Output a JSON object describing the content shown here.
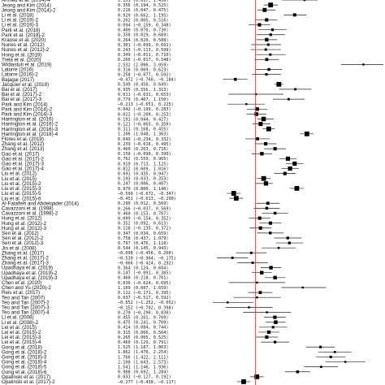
{
  "chart_data": {
    "type": "forest",
    "title": "",
    "xlabel": "",
    "ylabel": "",
    "null_line_value": 0,
    "xlim": [
      -1.0,
      3.0
    ],
    "null_line_color": "#e03030",
    "marker_color": "#000000",
    "studies": [
      {
        "label": "Ahmed et al. (2014)-4",
        "est": 1.151,
        "lo": 0.617,
        "hi": 1.456
      },
      {
        "label": "Jeong and Kim (2014)",
        "est": 0.356,
        "lo": 0.194,
        "hi": 0.525
      },
      {
        "label": "Jeong and Kim (2014)-2",
        "est": 0.216,
        "lo": 0.047,
        "hi": 0.475
      },
      {
        "label": "Li et al. (2018)",
        "est": 0.92,
        "lo": 0.662,
        "hi": 1.195
      },
      {
        "label": "Li et al. (2019)-2",
        "est": 0.262,
        "lo": 0.005,
        "hi": 0.516
      },
      {
        "label": "Li et al. (2019)-3",
        "est": 0.094,
        "lo": -0.159,
        "hi": 0.348
      },
      {
        "label": "Park et al. (2018)",
        "est": 0.4,
        "lo": 0.07,
        "hi": 0.73
      },
      {
        "label": "Park et al. (2018)-2",
        "est": 0.358,
        "lo": 0.029,
        "hi": 0.689
      },
      {
        "label": "Krause et al. (2020)",
        "est": 0.264,
        "lo": 0.02,
        "hi": 0.508
      },
      {
        "label": "Nunes et al. (2012)",
        "est": 0.301,
        "lo": -0.099,
        "hi": 0.601
      },
      {
        "label": "Nunes et al. (2012)-2",
        "est": 0.243,
        "lo": -0.113,
        "hi": 0.599
      },
      {
        "label": "Hong et al. (2019)",
        "est": 0.349,
        "lo": -0.011,
        "hi": 0.71
      },
      {
        "label": "Trela et al. (2020)",
        "est": 0.266,
        "lo": -0.017,
        "hi": 0.548
      },
      {
        "label": "Widiastuti et al. (2019)",
        "est": 2.532,
        "lo": 2.006,
        "hi": 3.059
      },
      {
        "label": "Latorre (2016)",
        "est": 0.316,
        "lo": 0.009,
        "hi": 0.623
      },
      {
        "label": "Latorre (2016)-2",
        "est": 0.258,
        "lo": -0.077,
        "hi": 0.592
      },
      {
        "label": "Bajagai (2017)",
        "est": -0.472,
        "lo": -0.76,
        "hi": -0.184
      },
      {
        "label": "Jacquier et al. (2019)",
        "est": 0.549,
        "lo": 0.45,
        "hi": 0.649
      },
      {
        "label": "Bai et al. (2017)",
        "est": 0.935,
        "lo": 0.556,
        "hi": 1.313
      },
      {
        "label": "Bai et al. (2017)-2",
        "est": 0.011,
        "lo": -0.631,
        "hi": 0.653
      },
      {
        "label": "Bai et al. (2017)-3",
        "est": 0.779,
        "lo": 0.407,
        "hi": 1.15
      },
      {
        "label": "Park and Kim (2014)",
        "est": -0.213,
        "lo": -0.651,
        "hi": 0.225
      },
      {
        "label": "Park and Kim (2014)-2",
        "est": 0.042,
        "lo": -0.199,
        "hi": 0.283
      },
      {
        "label": "Park and Kim (2014)-3",
        "est": 0.022,
        "lo": -0.209,
        "hi": 0.253
      },
      {
        "label": "Harrington et al. (2016)",
        "est": 0.191,
        "lo": 0.044,
        "hi": 0.427
      },
      {
        "label": "Harrington et al. (2016)-2",
        "est": 0.121,
        "lo": -0.065,
        "hi": 0.35
      },
      {
        "label": "Harrington et al. (2016)-3",
        "est": 0.311,
        "lo": 0.168,
        "hi": 0.455
      },
      {
        "label": "Harrington et al. (2018)-4",
        "est": 1.206,
        "lo": 1.048,
        "hi": 1.363
      },
      {
        "label": "Flores et al. (2019)",
        "est": 0.049,
        "lo": -0.234,
        "hi": 0.332
      },
      {
        "label": "Zhang et al. (2012)",
        "est": 0.239,
        "lo": -0.016,
        "hi": 0.495
      },
      {
        "label": "Zhang et al. (2013)",
        "est": 0.46,
        "lo": 0.203,
        "hi": 0.716
      },
      {
        "label": "Gao et al. (2017)",
        "est": 0.15,
        "lo": -0.09,
        "hi": 0.39
      },
      {
        "label": "Gao et al. (2017)-2",
        "est": 0.762,
        "lo": 0.559,
        "hi": 0.965
      },
      {
        "label": "Gao et al. (2017)-3",
        "est": 0.919,
        "lo": 0.713,
        "hi": 1.125
      },
      {
        "label": "Gao et al. (2017)-4",
        "est": 0.812,
        "lo": 0.609,
        "hi": 1.016
      },
      {
        "label": "Liu et al. (2012)",
        "est": 0.691,
        "lo": 0.435,
        "hi": 0.947
      },
      {
        "label": "Liu et al. (2015)",
        "est": 0.193,
        "lo": 0.033,
        "hi": 0.353
      },
      {
        "label": "Liu et al. (2015)-2",
        "est": 0.247,
        "lo": 0.006,
        "hi": 0.407
      },
      {
        "label": "Liu et al. (2015)-3",
        "est": 0.97,
        "lo": 0.8,
        "hi": 1.14
      },
      {
        "label": "Liu et al. (2015)-5",
        "est": -0.509,
        "lo": -0.672,
        "hi": -0.347
      },
      {
        "label": "Liu et al. (2015)-6",
        "est": -0.451,
        "lo": -0.613,
        "hi": -0.29
      },
      {
        "label": "Al-Fatafteh and Abdelqader (2014)",
        "est": 0.29,
        "lo": 0.012,
        "hi": 0.569
      },
      {
        "label": "Cavazzoni et al. (1998)",
        "est": 0.266,
        "lo": -0.037,
        "hi": 0.569
      },
      {
        "label": "Cavazzoni et al. (1998)-2",
        "est": 0.46,
        "lo": 0.153,
        "hi": 0.767
      },
      {
        "label": "Hung et al. (2012)",
        "est": 0.099,
        "lo": -0.154,
        "hi": 0.352
      },
      {
        "label": "Hung et al. (2012)-2",
        "est": 0.352,
        "lo": 0.092,
        "hi": 0.613
      },
      {
        "label": "Hung et al. (2012)-3",
        "est": 0.118,
        "lo": -0.135,
        "hi": 0.372
      },
      {
        "label": "Sen et al. (2012)",
        "est": 0.347,
        "lo": 0.034,
        "hi": 0.659
      },
      {
        "label": "Sen et al. (2012)-2",
        "est": 0.758,
        "lo": 0.437,
        "hi": 1.079
      },
      {
        "label": "Sen et al. (2012)-3",
        "est": 0.797,
        "lo": 0.476,
        "hi": 1.118
      },
      {
        "label": "Jin et al. (2008)",
        "est": 0.544,
        "lo": 0.145,
        "hi": 0.943
      },
      {
        "label": "Zhang et al. (2017)",
        "est": -0.098,
        "lo": -0.456,
        "hi": 0.26
      },
      {
        "label": "Zhang et al. (2017)-2",
        "est": -0.539,
        "lo": -0.904,
        "hi": -0.175
      },
      {
        "label": "Zhang et al. (2017)-3",
        "est": -0.066,
        "lo": -0.424,
        "hi": 0.292
      },
      {
        "label": "Upadhaya et al. (2019)",
        "est": 0.364,
        "lo": 0.124,
        "hi": 0.604
      },
      {
        "label": "Upadhaya et al. (2019)-2",
        "est": 0.147,
        "lo": -0.091,
        "hi": 0.385
      },
      {
        "label": "Upadhaya et al. (2019)-3",
        "est": 0.46,
        "lo": 0.218,
        "hi": 0.701
      },
      {
        "label": "Chen et al. (2020)",
        "est": 0.036,
        "lo": -0.624,
        "hi": 0.695
      },
      {
        "label": "Chen and Yu (2020)-2",
        "est": 1.109,
        "lo": 0.607,
        "hi": 1.659
      },
      {
        "label": "Reis et al. (2017)",
        "est": 0.112,
        "lo": -0.171,
        "hi": 0.395
      },
      {
        "label": "Teo and Tan (2007)",
        "est": 0.037,
        "lo": -0.517,
        "hi": 0.592
      },
      {
        "label": "Teo and Tan (2007)-2",
        "est": -0.652,
        "lo": -1.252,
        "hi": -0.052
      },
      {
        "label": "Teo and Tan (2007)-3",
        "est": -0.152,
        "lo": -0.702,
        "hi": 0.398
      },
      {
        "label": "Teo and Tan (2007)-4",
        "est": 0.27,
        "lo": -0.29,
        "hi": 0.83
      },
      {
        "label": "Li et al. (2008)",
        "est": 0.455,
        "lo": 0.201,
        "hi": 0.709
      },
      {
        "label": "Li et al. (2008)-2",
        "est": 0.475,
        "lo": 0.241,
        "hi": 0.709
      },
      {
        "label": "Lei et al. (2015)",
        "est": 0.414,
        "lo": 0.084,
        "hi": 0.744
      },
      {
        "label": "Lei et al. (2015)-2",
        "est": 0.315,
        "lo": 0.066,
        "hi": 0.564
      },
      {
        "label": "Lei et al. (2015)-3",
        "est": 0.265,
        "lo": 0.005,
        "hi": 0.525
      },
      {
        "label": "Lei et al. (2015)-4",
        "est": 0.46,
        "lo": 0.129,
        "hi": 0.791
      },
      {
        "label": "Gong et al. (2018)",
        "est": 1.525,
        "lo": 1.187,
        "hi": 1.863
      },
      {
        "label": "Gong et al. (2018)-2",
        "est": 1.862,
        "lo": 1.47,
        "hi": 2.254
      },
      {
        "label": "Gong et al. (2018)-3",
        "est": 1.766,
        "lo": 1.422,
        "hi": 2.111
      },
      {
        "label": "Gong et al. (2018)-4",
        "est": 2.108,
        "lo": 1.643,
        "hi": 2.573
      },
      {
        "label": "Gong et al. (2018)-5",
        "est": 1.541,
        "lo": 1.146,
        "hi": 1.936
      },
      {
        "label": "Gong et al. (2018)-6",
        "est": 0.988,
        "lo": 0.692,
        "hi": 1.284
      },
      {
        "label": "Opalinski et al. (2017)",
        "est": 0.033,
        "lo": -0.127,
        "hi": 0.192
      },
      {
        "label": "Opalinski et al. (2017)-2",
        "est": -0.277,
        "lo": -0.438,
        "hi": -0.117
      }
    ]
  }
}
